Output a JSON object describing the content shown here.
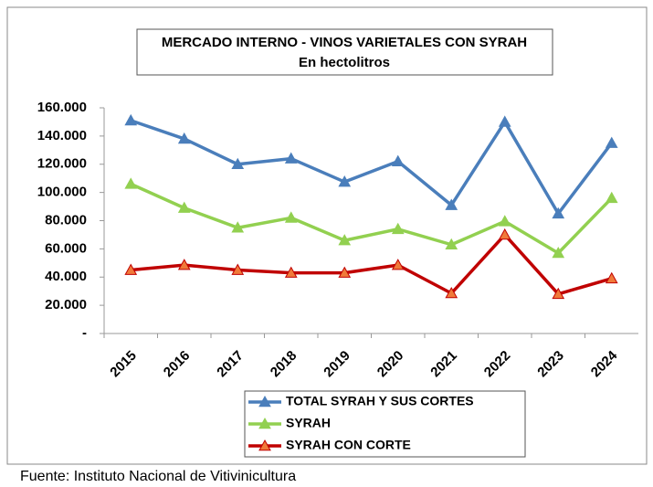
{
  "chart_data": {
    "type": "line",
    "title": "MERCADO INTERNO - VINOS VARIETALES CON SYRAH",
    "subtitle": "En hectolitros",
    "source": "Fuente: Instituto Nacional de Vitivinicultura",
    "categories": [
      "2015",
      "2016",
      "2017",
      "2018",
      "2019",
      "2020",
      "2021",
      "2022",
      "2023",
      "2024"
    ],
    "series": [
      {
        "name": "TOTAL SYRAH Y SUS CORTES",
        "color": "#4a7ebb",
        "marker_color": "#4a7ebb",
        "values": [
          151000,
          138000,
          120000,
          124000,
          107500,
          122000,
          91000,
          150000,
          85000,
          135000
        ]
      },
      {
        "name": "SYRAH",
        "color": "#92d050",
        "marker_color": "#92d050",
        "values": [
          106000,
          89000,
          75000,
          82000,
          66000,
          74000,
          63000,
          79500,
          57000,
          96000
        ]
      },
      {
        "name": "SYRAH  CON CORTE",
        "color": "#c00000",
        "marker_color": "#f07a3a",
        "values": [
          45000,
          48500,
          45000,
          43000,
          43000,
          48500,
          28500,
          70000,
          28000,
          39000
        ]
      }
    ],
    "ylim": [
      0,
      160000
    ],
    "yticks": [
      {
        "value": 0,
        "label": "-"
      },
      {
        "value": 20000,
        "label": "20.000"
      },
      {
        "value": 40000,
        "label": "40.000"
      },
      {
        "value": 60000,
        "label": "60.000"
      },
      {
        "value": 80000,
        "label": "80.000"
      },
      {
        "value": 100000,
        "label": "100.000"
      },
      {
        "value": 120000,
        "label": "120.000"
      },
      {
        "value": 140000,
        "label": "140.000"
      },
      {
        "value": 160000,
        "label": "160.000"
      }
    ],
    "grid": false
  }
}
